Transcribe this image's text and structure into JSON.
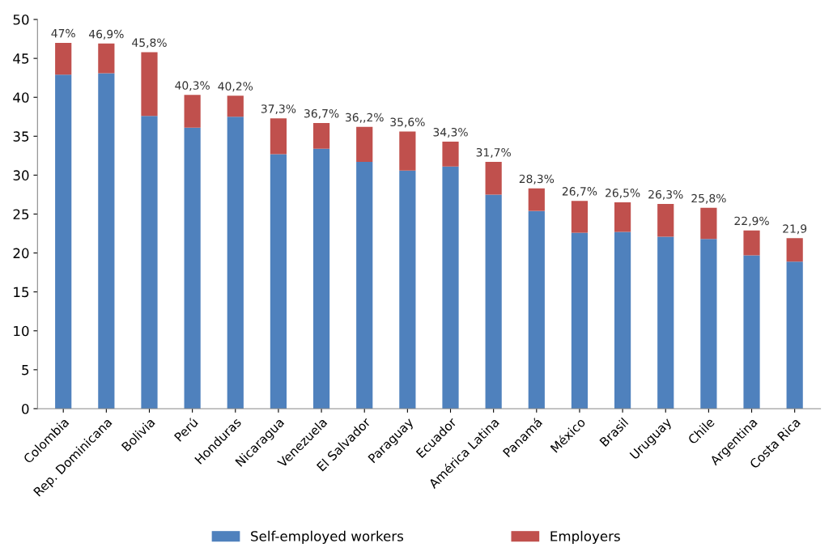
{
  "chart_data": {
    "type": "bar",
    "stacked": true,
    "categories": [
      "Colombia",
      "Rep. Dominicana",
      "Bolivia",
      "Perú",
      "Honduras",
      "Nicaragua",
      "Venezuela",
      "El Salvador",
      "Paraguay",
      "Ecuador",
      "América Latina",
      "Panamá",
      "México",
      "Brasil",
      "Uruguay",
      "Chile",
      "Argentina",
      "Costa Rica"
    ],
    "series": [
      {
        "name": "Self-employed workers",
        "color": "#4f81bd",
        "values": [
          42.9,
          43.1,
          37.6,
          36.1,
          37.5,
          32.7,
          33.4,
          31.7,
          30.6,
          31.1,
          27.5,
          25.4,
          22.6,
          22.7,
          22.1,
          21.8,
          19.7,
          18.9
        ]
      },
      {
        "name": "Employers",
        "color": "#c0504d",
        "values": [
          4.1,
          3.8,
          8.2,
          4.2,
          2.7,
          4.6,
          3.3,
          4.5,
          5.0,
          3.2,
          4.2,
          2.9,
          4.1,
          3.8,
          4.2,
          4.0,
          3.2,
          3.0
        ]
      }
    ],
    "totals": [
      "47%",
      "46,9%",
      "45,8%",
      "40,3%",
      "40,2%",
      "37,3%",
      "36,7%",
      "36,,2%",
      "35,6%",
      "34,3%",
      "31,7%",
      "28,3%",
      "26,7%",
      "26,5%",
      "26,3%",
      "25,8%",
      "22,9%",
      "21,9"
    ],
    "ylim": [
      0,
      50
    ],
    "yticks": [
      0,
      5,
      10,
      15,
      20,
      25,
      30,
      35,
      40,
      45,
      50
    ],
    "grid": false,
    "legend": "bottom"
  }
}
